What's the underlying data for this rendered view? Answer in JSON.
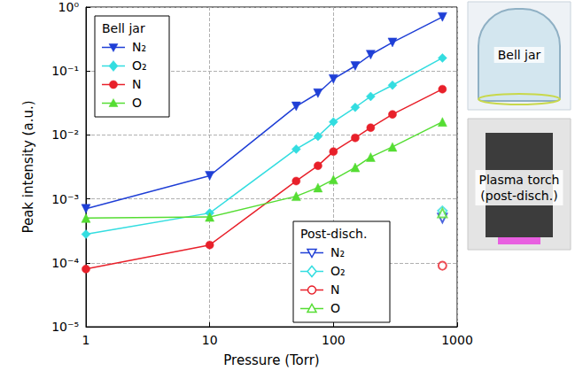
{
  "chart_data": {
    "type": "line",
    "x_label": "Pressure (Torr)",
    "y_label": "Peak intensity (a.u.)",
    "log": true,
    "grid": true,
    "xlim": [
      1,
      1000
    ],
    "ylim": [
      1e-05,
      1
    ],
    "xticks": [
      1,
      10,
      100,
      1000
    ],
    "yticks": [
      {
        "value": 1e-05,
        "label": "10⁻⁵"
      },
      {
        "value": 0.0001,
        "label": "10⁻⁴"
      },
      {
        "value": 0.001,
        "label": "10⁻³"
      },
      {
        "value": 0.01,
        "label": "10⁻²"
      },
      {
        "value": 0.1,
        "label": "10⁻¹"
      },
      {
        "value": 1,
        "label": "10⁰"
      }
    ],
    "groups": [
      {
        "title": "Bell jar",
        "legend": "upper left",
        "type": "line",
        "series": [
          {
            "name": "N₂",
            "color": "#1f3fd6",
            "marker": "triangle-down",
            "x": [
              1,
              10,
              50,
              75,
              100,
              150,
              200,
              300,
              760
            ],
            "values": [
              0.0007,
              0.0023,
              0.028,
              0.045,
              0.075,
              0.12,
              0.18,
              0.28,
              0.7
            ]
          },
          {
            "name": "O₂",
            "color": "#33dde0",
            "marker": "diamond",
            "x": [
              1,
              10,
              50,
              75,
              100,
              150,
              200,
              300,
              760
            ],
            "values": [
              0.00028,
              0.0006,
              0.006,
              0.0095,
              0.016,
              0.027,
              0.04,
              0.06,
              0.16
            ]
          },
          {
            "name": "N",
            "color": "#e8202a",
            "marker": "circle",
            "x": [
              1,
              10,
              50,
              75,
              100,
              150,
              200,
              300,
              760
            ],
            "values": [
              8e-05,
              0.00019,
              0.0019,
              0.0033,
              0.0055,
              0.009,
              0.013,
              0.021,
              0.052
            ]
          },
          {
            "name": "O",
            "color": "#55dd33",
            "marker": "triangle-up",
            "x": [
              1,
              10,
              50,
              75,
              100,
              150,
              200,
              300,
              760
            ],
            "values": [
              0.0005,
              0.00052,
              0.0011,
              0.0015,
              0.002,
              0.0031,
              0.0045,
              0.0065,
              0.016
            ]
          }
        ]
      },
      {
        "title": "Post-disch.",
        "legend": "lower right",
        "type": "scatter",
        "series": [
          {
            "name": "N₂",
            "color": "#1f3fd6",
            "marker": "open-triangle-down",
            "x": [
              760
            ],
            "values": [
              0.0005
            ]
          },
          {
            "name": "O₂",
            "color": "#33dde0",
            "marker": "open-diamond",
            "x": [
              760
            ],
            "values": [
              0.00065
            ]
          },
          {
            "name": "N",
            "color": "#e8202a",
            "marker": "open-circle",
            "x": [
              760
            ],
            "values": [
              9e-05
            ]
          },
          {
            "name": "O",
            "color": "#55dd33",
            "marker": "open-triangle-up",
            "x": [
              760
            ],
            "values": [
              0.0006
            ]
          }
        ]
      }
    ],
    "images": [
      {
        "label": "Bell jar"
      },
      {
        "label": "Plasma torch (post-disch.)"
      }
    ]
  }
}
